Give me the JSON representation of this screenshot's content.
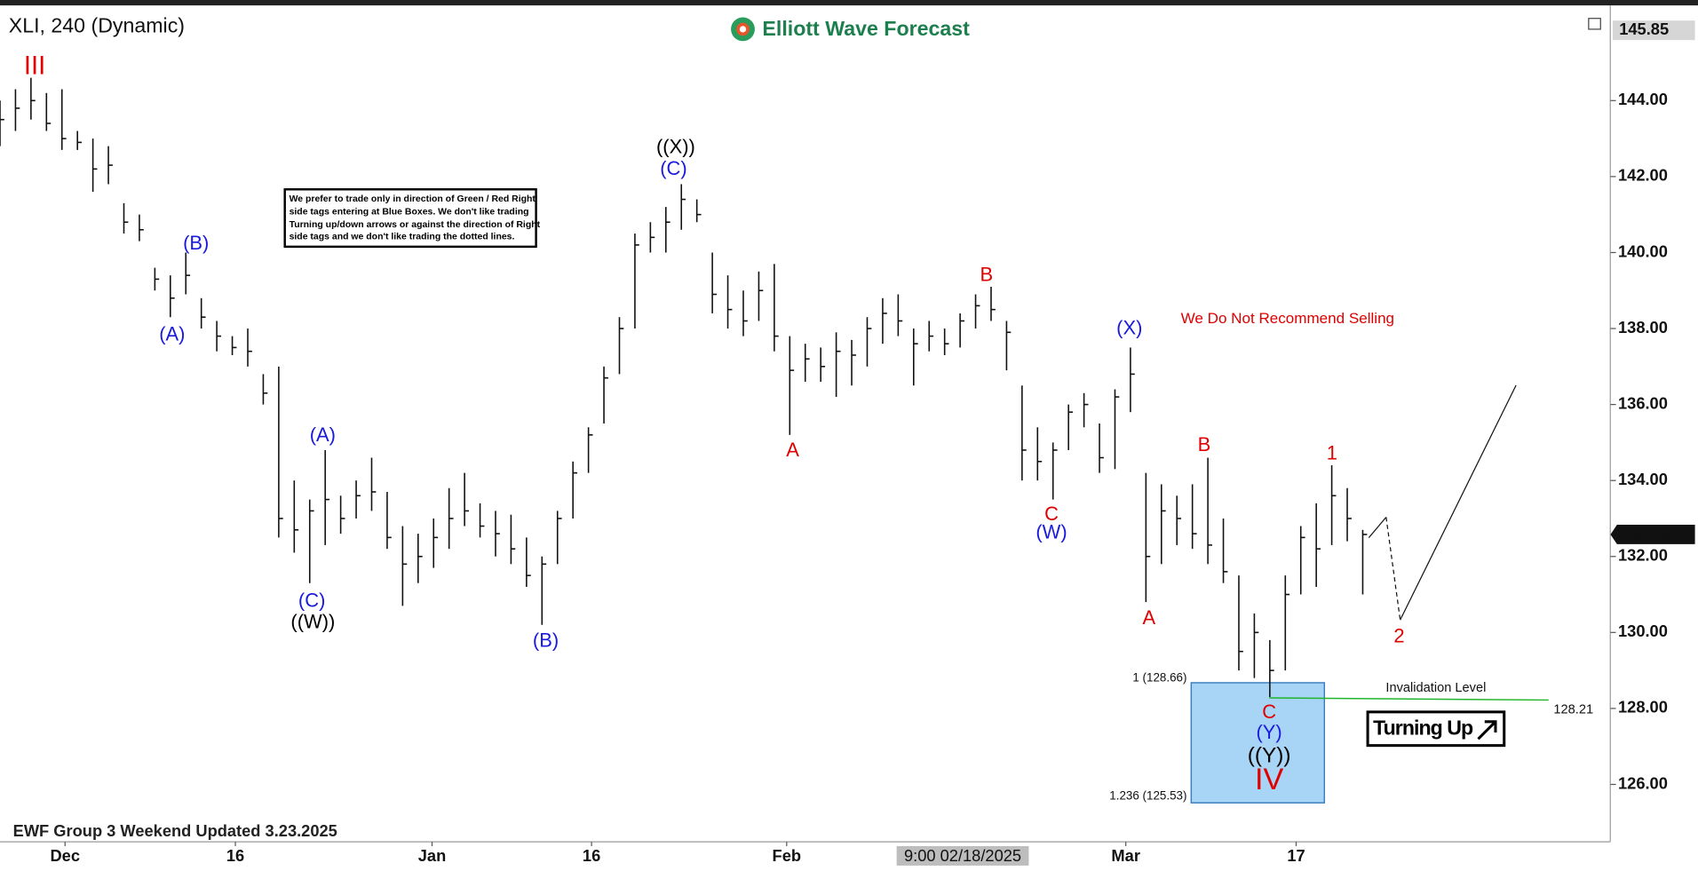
{
  "chart_data": {
    "type": "ohlc",
    "title": "XLI, 240 (Dynamic)",
    "brand": "Elliott Wave Forecast",
    "note": [
      "We prefer to trade only in direction of Green / Red Right",
      "side tags entering at Blue Boxes. We don't like trading",
      "Turning up/down arrows or against the direction of Right",
      "side tags and we don't like trading the dotted lines."
    ],
    "advice": "We Do Not Recommend Selling",
    "invalidation_text": "Invalidation Level",
    "invalidation_value": 128.21,
    "box_levels": [
      "1 (128.66)",
      "1.236 (125.53)"
    ],
    "button": "Turning Up",
    "footer": "EWF Group 3 Weekend Updated 3.23.2025",
    "crosshair_label": "9:00 02/18/2025",
    "top_price": 145.85,
    "last_price": 132.58,
    "wave_labels": [
      {
        "text": "III",
        "color": "#e00000"
      },
      {
        "text": "(B)",
        "color": "#1a1adc"
      },
      {
        "text": "(A)",
        "color": "#1a1adc"
      },
      {
        "text": "(A)",
        "color": "#1a1adc"
      },
      {
        "text": "(C)",
        "color": "#1a1adc"
      },
      {
        "text": "((W))",
        "color": "#000000"
      },
      {
        "text": "(B)",
        "color": "#1a1adc"
      },
      {
        "text": "((X))",
        "color": "#000000"
      },
      {
        "text": "(C)",
        "color": "#1a1adc"
      },
      {
        "text": "A",
        "color": "#e00000"
      },
      {
        "text": "B",
        "color": "#e00000"
      },
      {
        "text": "(X)",
        "color": "#1a1adc"
      },
      {
        "text": "C",
        "color": "#e00000"
      },
      {
        "text": "(W)",
        "color": "#1a1adc"
      },
      {
        "text": "A",
        "color": "#e00000"
      },
      {
        "text": "B",
        "color": "#e00000"
      },
      {
        "text": "1",
        "color": "#e00000"
      },
      {
        "text": "2",
        "color": "#e00000"
      },
      {
        "text": "C",
        "color": "#e00000"
      },
      {
        "text": "(Y)",
        "color": "#1a1adc"
      },
      {
        "text": "((Y))",
        "color": "#000000"
      },
      {
        "text": "IV",
        "color": "#e00000"
      }
    ],
    "x": [
      0,
      1,
      2,
      3,
      4,
      5,
      6,
      7,
      8,
      9,
      10,
      11,
      12,
      13,
      14,
      15,
      16,
      17,
      18,
      19,
      20,
      21,
      22,
      23,
      24,
      25,
      26,
      27,
      28,
      29,
      30,
      31,
      32,
      33,
      34,
      35,
      36,
      37,
      38,
      39,
      40,
      41,
      42,
      43,
      44,
      45,
      46,
      47,
      48,
      49,
      50,
      51,
      52,
      53,
      54,
      55,
      56,
      57,
      58,
      59,
      60,
      61,
      62,
      63,
      64,
      65,
      66,
      67,
      68,
      69,
      70,
      71,
      72,
      73,
      74,
      75,
      76,
      77,
      78,
      79,
      80,
      81,
      82,
      83,
      84,
      85,
      86,
      87,
      88
    ],
    "high": [
      144,
      144.3,
      144.6,
      144.2,
      144.3,
      143.2,
      143,
      142.8,
      141.3,
      141,
      139.6,
      139.4,
      140,
      138.8,
      138.2,
      137.8,
      138,
      136.8,
      137,
      134,
      133.5,
      134.8,
      133.6,
      134,
      134.6,
      133.7,
      132.8,
      132.6,
      133,
      133.8,
      134.2,
      133.4,
      133.2,
      133.1,
      132.5,
      132,
      133.2,
      134.5,
      135.4,
      137,
      138.3,
      140.5,
      140.8,
      141.2,
      141.8,
      141.4,
      140,
      139.4,
      139,
      139.5,
      139.7,
      137.8,
      137.6,
      137.5,
      137.9,
      137.7,
      138.3,
      138.8,
      138.9,
      138,
      138.2,
      138,
      138.4,
      138.9,
      139.1,
      138.2,
      136.5,
      135.4,
      135,
      136,
      136.3,
      135.5,
      136.4,
      137.5,
      134.2,
      133.9,
      133.6,
      133.9,
      134.6,
      133,
      131.5,
      130.5,
      129.8,
      131.5,
      132.8,
      133.4,
      134.4,
      133.8,
      132.7
    ],
    "low": [
      142.8,
      143.2,
      143.5,
      143.2,
      142.7,
      142.7,
      141.6,
      141.8,
      140.5,
      140.3,
      139,
      138.3,
      138.9,
      138,
      137.4,
      137.3,
      137,
      136,
      132.5,
      132.1,
      131.3,
      132.3,
      132.6,
      133,
      133.2,
      132.2,
      130.7,
      131.3,
      131.7,
      132.2,
      132.8,
      132.5,
      132,
      131.8,
      131.2,
      130.2,
      131.8,
      133,
      134.2,
      135.5,
      136.8,
      138,
      140,
      140,
      140.6,
      140.8,
      138.4,
      138,
      137.8,
      138.2,
      137.4,
      135.2,
      136.6,
      136.6,
      136.2,
      136.5,
      137,
      137.6,
      137.8,
      136.5,
      137.4,
      137.3,
      137.5,
      138,
      138.2,
      136.9,
      134,
      134,
      133.5,
      134.8,
      135.4,
      134.2,
      134.3,
      135.8,
      130.8,
      131.8,
      132.3,
      132.2,
      131.8,
      131.3,
      129,
      128.8,
      128.3,
      129,
      131,
      131.2,
      132.3,
      132.4,
      131
    ],
    "close": [
      143.5,
      143.8,
      144,
      143.4,
      143,
      142.9,
      142.2,
      142.3,
      140.8,
      140.6,
      139.3,
      138.8,
      139.4,
      138.3,
      137.8,
      137.5,
      137.4,
      136.3,
      133,
      132.7,
      133.2,
      133.5,
      133,
      133.6,
      133.7,
      132.5,
      131.8,
      132,
      132.5,
      133,
      133.2,
      132.8,
      132.6,
      132.2,
      131.5,
      131.8,
      133,
      134.2,
      135.2,
      136.7,
      138,
      140.2,
      140.4,
      140.8,
      141.4,
      141,
      138.9,
      138.5,
      138.2,
      139,
      137.8,
      136.9,
      137.2,
      137,
      137.4,
      137.3,
      138,
      138.4,
      138.2,
      137.6,
      137.8,
      137.6,
      138.2,
      138.6,
      138.5,
      137.9,
      134.8,
      134.5,
      134.8,
      135.8,
      136,
      134.6,
      136.2,
      136.8,
      132,
      133.2,
      133,
      132.6,
      132.3,
      131.6,
      129.5,
      130,
      129,
      131,
      132.5,
      132.2,
      133.6,
      133,
      132.58
    ],
    "xlim": [
      0,
      104
    ],
    "ylim": [
      124.49,
      146.42
    ],
    "xticks": [
      {
        "value": 4.2,
        "label": "Dec"
      },
      {
        "value": 15.2,
        "label": "16"
      },
      {
        "value": 27.9,
        "label": "Jan"
      },
      {
        "value": 38.2,
        "label": "16"
      },
      {
        "value": 50.8,
        "label": "Feb"
      },
      {
        "value": 72.7,
        "label": "Mar"
      },
      {
        "value": 83.7,
        "label": "17"
      }
    ],
    "yticks": [
      {
        "value": 126,
        "label": "126.00"
      },
      {
        "value": 128,
        "label": "128.00"
      },
      {
        "value": 130,
        "label": "130.00"
      },
      {
        "value": 132,
        "label": "132.00"
      },
      {
        "value": 134,
        "label": "134.00"
      },
      {
        "value": 136,
        "label": "136.00"
      },
      {
        "value": 138,
        "label": "138.00"
      },
      {
        "value": 140,
        "label": "140.00"
      },
      {
        "value": 142,
        "label": "142.00"
      },
      {
        "value": 144,
        "label": "144.00"
      }
    ],
    "color": "#111111"
  }
}
